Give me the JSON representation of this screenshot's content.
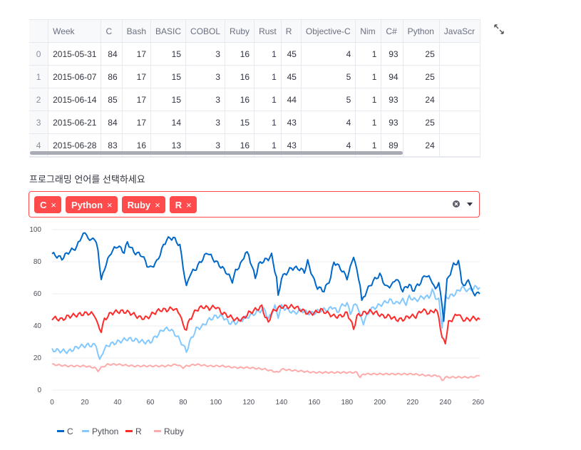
{
  "dataframe": {
    "columns": [
      "Week",
      "C",
      "Bash",
      "BASIC",
      "COBOL",
      "Ruby",
      "Rust",
      "R",
      "Objective-C",
      "Nim",
      "C#",
      "Python",
      "JavaScr"
    ],
    "rows": [
      {
        "index": "0",
        "cells": [
          "2015-05-31",
          "84",
          "17",
          "15",
          "3",
          "16",
          "1",
          "45",
          "4",
          "1",
          "93",
          "25",
          ""
        ]
      },
      {
        "index": "1",
        "cells": [
          "2015-06-07",
          "86",
          "17",
          "15",
          "3",
          "16",
          "1",
          "45",
          "5",
          "1",
          "94",
          "25",
          ""
        ]
      },
      {
        "index": "2",
        "cells": [
          "2015-06-14",
          "85",
          "17",
          "15",
          "3",
          "16",
          "1",
          "44",
          "5",
          "1",
          "93",
          "24",
          ""
        ]
      },
      {
        "index": "3",
        "cells": [
          "2015-06-21",
          "84",
          "17",
          "14",
          "3",
          "15",
          "1",
          "43",
          "4",
          "1",
          "93",
          "25",
          ""
        ]
      },
      {
        "index": "4",
        "cells": [
          "2015-06-28",
          "83",
          "16",
          "13",
          "3",
          "16",
          "1",
          "43",
          "4",
          "1",
          "89",
          "24",
          ""
        ]
      }
    ],
    "expand_icon": "fullscreen-expand-icon"
  },
  "multiselect": {
    "label": "프로그래밍 언어를 선택하세요",
    "selected": [
      "C",
      "Python",
      "Ruby",
      "R"
    ],
    "remove_glyph": "×",
    "accent_color": "#ff4b4b",
    "clear_icon": "clear-icon",
    "dropdown_icon": "chevron-down-icon"
  },
  "chart_data": {
    "type": "line",
    "xlim": [
      0,
      261
    ],
    "ylim": [
      0,
      100
    ],
    "xticks": [
      0,
      20,
      40,
      60,
      80,
      100,
      120,
      140,
      160,
      180,
      200,
      220,
      240,
      260
    ],
    "yticks": [
      0,
      20,
      40,
      60,
      80,
      100
    ],
    "xtick_labels": [
      "0",
      "20",
      "40",
      "60",
      "80",
      "100",
      "120",
      "140",
      "160",
      "180",
      "200",
      "220",
      "240",
      "260"
    ],
    "ytick_labels": [
      "0",
      "20",
      "40",
      "60",
      "80",
      "100"
    ],
    "grid": true,
    "legend_position": "bottom-left",
    "series": [
      {
        "name": "C",
        "color": "#0068c9",
        "keyframes": [
          [
            0,
            85
          ],
          [
            6,
            82
          ],
          [
            10,
            86
          ],
          [
            15,
            89
          ],
          [
            18,
            96
          ],
          [
            21,
            98
          ],
          [
            23,
            92
          ],
          [
            25,
            96
          ],
          [
            28,
            88
          ],
          [
            30,
            68
          ],
          [
            32,
            76
          ],
          [
            36,
            86
          ],
          [
            40,
            90
          ],
          [
            44,
            86
          ],
          [
            46,
            92
          ],
          [
            50,
            86
          ],
          [
            55,
            84
          ],
          [
            58,
            78
          ],
          [
            60,
            76
          ],
          [
            64,
            80
          ],
          [
            68,
            90
          ],
          [
            70,
            94
          ],
          [
            74,
            95
          ],
          [
            78,
            90
          ],
          [
            82,
            64
          ],
          [
            84,
            72
          ],
          [
            88,
            76
          ],
          [
            92,
            82
          ],
          [
            95,
            86
          ],
          [
            98,
            82
          ],
          [
            102,
            78
          ],
          [
            106,
            74
          ],
          [
            110,
            68
          ],
          [
            112,
            74
          ],
          [
            116,
            80
          ],
          [
            118,
            86
          ],
          [
            120,
            84
          ],
          [
            124,
            70
          ],
          [
            126,
            78
          ],
          [
            128,
            80
          ],
          [
            132,
            82
          ],
          [
            134,
            84
          ],
          [
            137,
            70
          ],
          [
            138,
            58
          ],
          [
            140,
            70
          ],
          [
            142,
            72
          ],
          [
            146,
            76
          ],
          [
            150,
            76
          ],
          [
            154,
            74
          ],
          [
            156,
            80
          ],
          [
            160,
            68
          ],
          [
            162,
            64
          ],
          [
            166,
            62
          ],
          [
            170,
            70
          ],
          [
            172,
            80
          ],
          [
            176,
            76
          ],
          [
            180,
            70
          ],
          [
            182,
            76
          ],
          [
            184,
            84
          ],
          [
            186,
            74
          ],
          [
            188,
            66
          ],
          [
            189,
            55
          ],
          [
            192,
            62
          ],
          [
            196,
            68
          ],
          [
            200,
            72
          ],
          [
            204,
            64
          ],
          [
            208,
            66
          ],
          [
            210,
            70
          ],
          [
            214,
            62
          ],
          [
            218,
            66
          ],
          [
            220,
            62
          ],
          [
            224,
            66
          ],
          [
            228,
            72
          ],
          [
            232,
            68
          ],
          [
            234,
            62
          ],
          [
            236,
            68
          ],
          [
            239,
            44
          ],
          [
            241,
            68
          ],
          [
            245,
            78
          ],
          [
            248,
            80
          ],
          [
            250,
            68
          ],
          [
            252,
            64
          ],
          [
            254,
            70
          ],
          [
            256,
            62
          ],
          [
            258,
            60
          ],
          [
            261,
            60
          ]
        ]
      },
      {
        "name": "Python",
        "color": "#83c9ff",
        "keyframes": [
          [
            0,
            25
          ],
          [
            10,
            24
          ],
          [
            16,
            27
          ],
          [
            22,
            28
          ],
          [
            27,
            28
          ],
          [
            29,
            18
          ],
          [
            31,
            24
          ],
          [
            34,
            28
          ],
          [
            40,
            30
          ],
          [
            46,
            32
          ],
          [
            52,
            31
          ],
          [
            56,
            30
          ],
          [
            60,
            30
          ],
          [
            64,
            34
          ],
          [
            68,
            38
          ],
          [
            72,
            38
          ],
          [
            76,
            34
          ],
          [
            80,
            28
          ],
          [
            82,
            24
          ],
          [
            84,
            30
          ],
          [
            88,
            38
          ],
          [
            92,
            40
          ],
          [
            96,
            44
          ],
          [
            100,
            46
          ],
          [
            104,
            46
          ],
          [
            108,
            42
          ],
          [
            112,
            42
          ],
          [
            116,
            44
          ],
          [
            120,
            46
          ],
          [
            124,
            48
          ],
          [
            128,
            50
          ],
          [
            130,
            50
          ],
          [
            132,
            44
          ],
          [
            134,
            48
          ],
          [
            136,
            52
          ],
          [
            138,
            46
          ],
          [
            140,
            52
          ],
          [
            144,
            50
          ],
          [
            148,
            48
          ],
          [
            152,
            50
          ],
          [
            156,
            48
          ],
          [
            160,
            48
          ],
          [
            164,
            50
          ],
          [
            168,
            50
          ],
          [
            172,
            52
          ],
          [
            174,
            48
          ],
          [
            176,
            52
          ],
          [
            180,
            54
          ],
          [
            182,
            48
          ],
          [
            184,
            52
          ],
          [
            186,
            54
          ],
          [
            188,
            46
          ],
          [
            190,
            42
          ],
          [
            194,
            50
          ],
          [
            198,
            52
          ],
          [
            202,
            54
          ],
          [
            206,
            56
          ],
          [
            210,
            54
          ],
          [
            214,
            56
          ],
          [
            216,
            54
          ],
          [
            218,
            58
          ],
          [
            222,
            56
          ],
          [
            226,
            58
          ],
          [
            230,
            58
          ],
          [
            232,
            62
          ],
          [
            234,
            58
          ],
          [
            236,
            56
          ],
          [
            238,
            40
          ],
          [
            240,
            58
          ],
          [
            242,
            58
          ],
          [
            246,
            60
          ],
          [
            250,
            64
          ],
          [
            254,
            62
          ],
          [
            258,
            64
          ],
          [
            261,
            64
          ]
        ]
      },
      {
        "name": "R",
        "color": "#ff2b2b",
        "keyframes": [
          [
            0,
            45
          ],
          [
            6,
            44
          ],
          [
            10,
            46
          ],
          [
            16,
            47
          ],
          [
            22,
            48
          ],
          [
            26,
            47
          ],
          [
            28,
            40
          ],
          [
            30,
            37
          ],
          [
            32,
            44
          ],
          [
            36,
            48
          ],
          [
            40,
            49
          ],
          [
            44,
            49
          ],
          [
            48,
            48
          ],
          [
            54,
            45
          ],
          [
            58,
            45
          ],
          [
            62,
            48
          ],
          [
            66,
            50
          ],
          [
            70,
            50
          ],
          [
            74,
            51
          ],
          [
            78,
            48
          ],
          [
            80,
            40
          ],
          [
            82,
            38
          ],
          [
            84,
            44
          ],
          [
            88,
            50
          ],
          [
            92,
            52
          ],
          [
            96,
            51
          ],
          [
            100,
            52
          ],
          [
            104,
            48
          ],
          [
            108,
            46
          ],
          [
            112,
            44
          ],
          [
            116,
            44
          ],
          [
            120,
            48
          ],
          [
            124,
            50
          ],
          [
            128,
            52
          ],
          [
            130,
            46
          ],
          [
            132,
            42
          ],
          [
            134,
            48
          ],
          [
            136,
            50
          ],
          [
            140,
            52
          ],
          [
            144,
            52
          ],
          [
            148,
            52
          ],
          [
            152,
            50
          ],
          [
            156,
            48
          ],
          [
            160,
            48
          ],
          [
            164,
            50
          ],
          [
            168,
            48
          ],
          [
            172,
            46
          ],
          [
            176,
            46
          ],
          [
            180,
            48
          ],
          [
            182,
            44
          ],
          [
            184,
            38
          ],
          [
            186,
            46
          ],
          [
            190,
            48
          ],
          [
            194,
            49
          ],
          [
            198,
            48
          ],
          [
            202,
            46
          ],
          [
            206,
            46
          ],
          [
            210,
            44
          ],
          [
            214,
            44
          ],
          [
            218,
            46
          ],
          [
            222,
            46
          ],
          [
            226,
            50
          ],
          [
            230,
            48
          ],
          [
            234,
            50
          ],
          [
            236,
            46
          ],
          [
            238,
            32
          ],
          [
            240,
            30
          ],
          [
            242,
            42
          ],
          [
            246,
            46
          ],
          [
            248,
            48
          ],
          [
            250,
            44
          ],
          [
            254,
            44
          ],
          [
            258,
            45
          ],
          [
            261,
            44
          ]
        ]
      },
      {
        "name": "Ruby",
        "color": "#ffabab",
        "keyframes": [
          [
            0,
            16
          ],
          [
            10,
            15
          ],
          [
            20,
            15
          ],
          [
            26,
            14
          ],
          [
            28,
            12
          ],
          [
            30,
            14
          ],
          [
            34,
            16
          ],
          [
            40,
            16
          ],
          [
            50,
            15
          ],
          [
            60,
            15
          ],
          [
            70,
            15
          ],
          [
            76,
            16
          ],
          [
            80,
            14
          ],
          [
            82,
            15
          ],
          [
            88,
            16
          ],
          [
            96,
            15
          ],
          [
            104,
            15
          ],
          [
            112,
            14
          ],
          [
            120,
            14
          ],
          [
            130,
            13
          ],
          [
            134,
            12
          ],
          [
            138,
            11
          ],
          [
            140,
            13
          ],
          [
            150,
            12
          ],
          [
            160,
            11
          ],
          [
            170,
            11
          ],
          [
            180,
            11
          ],
          [
            186,
            11
          ],
          [
            188,
            8
          ],
          [
            190,
            10
          ],
          [
            200,
            10
          ],
          [
            210,
            10
          ],
          [
            220,
            10
          ],
          [
            230,
            9
          ],
          [
            236,
            9
          ],
          [
            238,
            6
          ],
          [
            240,
            8
          ],
          [
            250,
            8
          ],
          [
            256,
            8
          ],
          [
            261,
            9
          ]
        ]
      }
    ]
  }
}
